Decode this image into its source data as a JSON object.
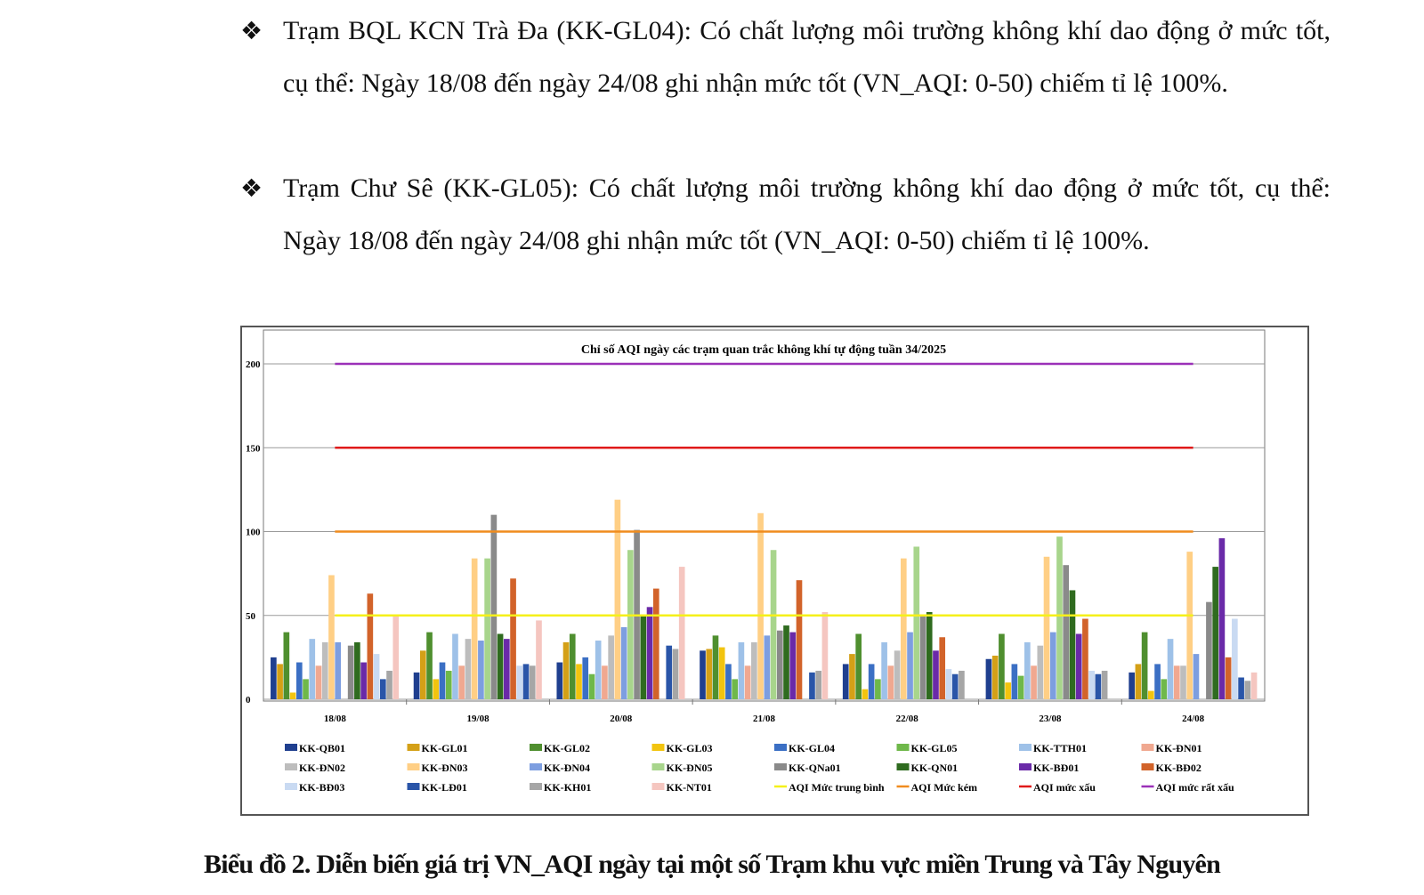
{
  "paragraphs": [
    {
      "bullet": "❖",
      "text": "Trạm BQL KCN Trà Đa (KK-GL04): Có chất lượng môi trường không khí dao động ở mức tốt, cụ thể: Ngày 18/08 đến ngày 24/08 ghi nhận mức tốt (VN_AQI: 0-50) chiếm tỉ lệ 100%."
    },
    {
      "bullet": "❖",
      "text": "Trạm Chư Sê (KK-GL05): Có chất lượng môi trường không khí dao động ở mức tốt, cụ thể: Ngày 18/08 đến ngày 24/08 ghi nhận mức tốt (VN_AQI: 0-50) chiếm tỉ lệ 100%."
    }
  ],
  "caption": "Biểu đồ 2. Diễn biến giá trị VN_AQI ngày tại một số Trạm khu vực miền Trung và Tây Nguyên",
  "chart_data": {
    "type": "bar",
    "title": "Chỉ số AQI ngày các trạm quan trắc không khí tự động tuần 34/2025",
    "xlabel": "",
    "ylabel": "",
    "ylim": [
      0,
      200
    ],
    "yticks": [
      0,
      50,
      100,
      150,
      200
    ],
    "grid": true,
    "legend_position": "bottom",
    "categories": [
      "18/08",
      "19/08",
      "20/08",
      "21/08",
      "22/08",
      "23/08",
      "24/08"
    ],
    "series": [
      {
        "name": "KK-QB01",
        "color": "#1f3f8f",
        "values": [
          25,
          16,
          22,
          29,
          21,
          24,
          16
        ]
      },
      {
        "name": "KK-GL01",
        "color": "#d4a017",
        "values": [
          21,
          29,
          34,
          30,
          27,
          26,
          21
        ]
      },
      {
        "name": "KK-GL02",
        "color": "#4f8f2f",
        "values": [
          40,
          40,
          39,
          38,
          39,
          39,
          40
        ]
      },
      {
        "name": "KK-GL03",
        "color": "#f2c40f",
        "values": [
          4,
          12,
          21,
          31,
          6,
          10,
          5
        ]
      },
      {
        "name": "KK-GL04",
        "color": "#3b6fc4",
        "values": [
          22,
          22,
          25,
          21,
          21,
          21,
          21
        ]
      },
      {
        "name": "KK-GL05",
        "color": "#6fb84a",
        "values": [
          12,
          17,
          15,
          12,
          12,
          14,
          12
        ]
      },
      {
        "name": "KK-TTH01",
        "color": "#9ec1e8",
        "values": [
          36,
          39,
          35,
          34,
          34,
          34,
          36
        ]
      },
      {
        "name": "KK-ĐN01",
        "color": "#f0a890",
        "values": [
          20,
          20,
          20,
          20,
          20,
          20,
          20
        ]
      },
      {
        "name": "KK-ĐN02",
        "color": "#bdbdbd",
        "values": [
          34,
          36,
          38,
          34,
          29,
          32,
          20
        ]
      },
      {
        "name": "KK-ĐN03",
        "color": "#ffcf85",
        "values": [
          74,
          84,
          119,
          111,
          84,
          85,
          88
        ]
      },
      {
        "name": "KK-ĐN04",
        "color": "#7d9ee0",
        "values": [
          34,
          35,
          43,
          38,
          40,
          40,
          27
        ]
      },
      {
        "name": "KK-ĐN05",
        "color": "#a8d58c",
        "values": [
          0,
          84,
          89,
          89,
          91,
          97,
          0
        ]
      },
      {
        "name": "KK-QNa01",
        "color": "#8a8a8a",
        "values": [
          32,
          110,
          101,
          41,
          50,
          80,
          58
        ]
      },
      {
        "name": "KK-QN01",
        "color": "#2f6b1f",
        "values": [
          34,
          39,
          50,
          44,
          52,
          65,
          79
        ]
      },
      {
        "name": "KK-BĐ01",
        "color": "#6a2aa8",
        "values": [
          22,
          36,
          55,
          40,
          29,
          39,
          96
        ]
      },
      {
        "name": "KK-BĐ02",
        "color": "#d2632a",
        "values": [
          63,
          72,
          66,
          71,
          37,
          48,
          25
        ]
      },
      {
        "name": "KK-BĐ03",
        "color": "#c9daf2",
        "values": [
          27,
          20,
          0,
          0,
          18,
          17,
          48
        ]
      },
      {
        "name": "KK-LĐ01",
        "color": "#2a55a8",
        "values": [
          12,
          21,
          32,
          16,
          15,
          15,
          13
        ]
      },
      {
        "name": "KK-KH01",
        "color": "#a6a6a6",
        "values": [
          17,
          20,
          30,
          17,
          17,
          17,
          11
        ]
      },
      {
        "name": "KK-NT01",
        "color": "#f5c6c0",
        "values": [
          50,
          47,
          79,
          52,
          0,
          0,
          16
        ]
      }
    ],
    "reference_lines": [
      {
        "name": "AQI Mức trung bình",
        "value": 50,
        "color": "#f5f01a"
      },
      {
        "name": "AQI Mức kém",
        "value": 100,
        "color": "#f08c1e"
      },
      {
        "name": "AQI mức xấu",
        "value": 150,
        "color": "#e01a1a"
      },
      {
        "name": "AQI mức rất xấu",
        "value": 200,
        "color": "#9b30b8"
      }
    ]
  }
}
